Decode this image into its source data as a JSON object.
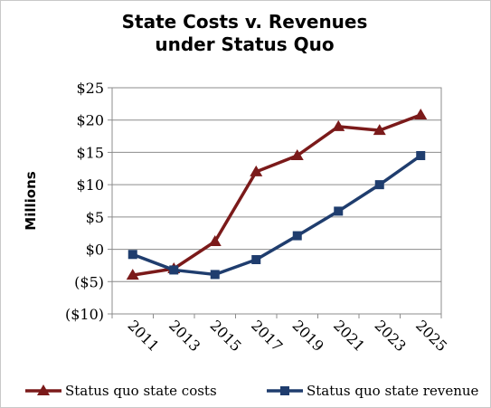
{
  "chart_data": {
    "type": "line",
    "title_line1": "State Costs v. Revenues",
    "title_line2": "under Status Quo",
    "xlabel": "",
    "ylabel": "Millions",
    "categories": [
      "2011",
      "2013",
      "2015",
      "2017",
      "2019",
      "2021",
      "2023",
      "2025"
    ],
    "y_tick_labels": [
      "$25",
      "$20",
      "$15",
      "$10",
      "$5",
      "$0",
      "($5)",
      "($10)"
    ],
    "y_ticks": [
      25,
      20,
      15,
      10,
      5,
      0,
      -5,
      -10
    ],
    "ylim": [
      -10,
      25
    ],
    "grid": true,
    "legend_position": "bottom",
    "series": [
      {
        "name": "Status quo state costs",
        "values": [
          -4,
          -3,
          1.2,
          12,
          14.5,
          19,
          18.4,
          20.8
        ],
        "color": "#7b1a1a",
        "marker": "triangle"
      },
      {
        "name": "Status quo state revenue",
        "values": [
          -0.8,
          -3.2,
          -3.9,
          -1.6,
          2.1,
          5.9,
          10,
          14.5
        ],
        "color": "#1f3d6e",
        "marker": "square"
      }
    ]
  }
}
